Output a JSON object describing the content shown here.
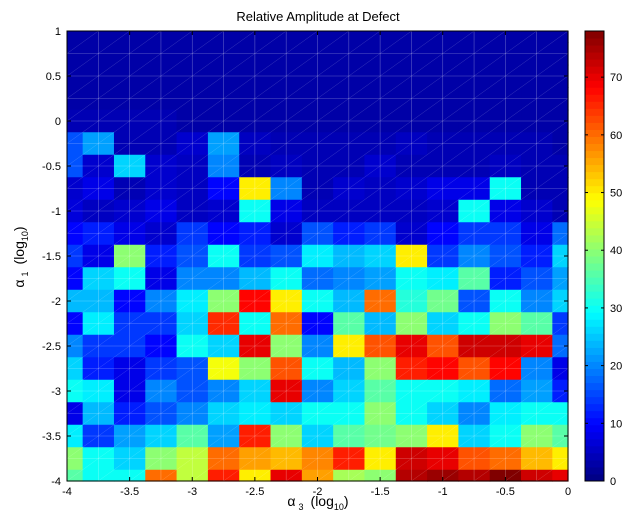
{
  "chart_data": {
    "type": "heatmap",
    "title": "Relative Amplitude at Defect",
    "xlabel": {
      "sym": "α",
      "sub": "3",
      "unit": "(log",
      "unit_sub": "10",
      "unit_end": ")"
    },
    "ylabel": {
      "sym": "α",
      "sub": "1",
      "unit": "(log",
      "unit_sub": "10",
      "unit_end": ")"
    },
    "xlim": [
      -4,
      0
    ],
    "ylim": [
      -4,
      1
    ],
    "xticks": [
      "-4",
      "-3.5",
      "-3",
      "-2.5",
      "-2",
      "-1.5",
      "-1",
      "-0.5",
      "0"
    ],
    "yticks": [
      "-4",
      "-3.5",
      "-3",
      "-2.5",
      "-2",
      "-1.5",
      "-1",
      "-0.5",
      "0",
      "0.5",
      "1"
    ],
    "colorbar": {
      "range": [
        0,
        78
      ],
      "ticks": [
        "0",
        "10",
        "20",
        "30",
        "40",
        "50",
        "60",
        "70"
      ],
      "colormap": "jet"
    },
    "grid": {
      "x": [
        -4,
        -3.75,
        -3.5,
        -3.25,
        -3,
        -2.75,
        -2.5,
        -2.25,
        -2,
        -1.75,
        -1.5,
        -1.25,
        -1,
        -0.75,
        -0.5,
        -0.25,
        0
      ],
      "y": [
        -4,
        -3.75,
        -3.5,
        -3.25,
        -3,
        -2.75,
        -2.5,
        -2.25,
        -2,
        -1.75,
        -1.5,
        -1.25,
        -1,
        -0.75,
        -0.5,
        -0.25,
        0,
        0.25,
        0.5,
        0.75,
        1
      ]
    },
    "z_rows_top_to_bottom": [
      [
        3,
        3,
        3,
        3,
        3,
        3,
        3,
        3,
        3,
        3,
        3,
        3,
        3,
        3,
        3,
        3,
        3
      ],
      [
        3,
        3,
        3,
        3,
        3,
        3,
        3,
        3,
        3,
        3,
        3,
        3,
        3,
        3,
        3,
        3,
        3
      ],
      [
        3,
        3,
        3,
        3,
        3,
        3,
        3,
        3,
        3,
        3,
        3,
        3,
        3,
        3,
        3,
        3,
        3
      ],
      [
        3,
        3,
        3,
        3,
        3,
        3,
        3,
        3,
        3,
        3,
        3,
        3,
        3,
        3,
        3,
        3,
        3
      ],
      [
        4,
        4,
        4,
        4,
        3,
        3,
        3,
        3,
        3,
        3,
        3,
        3,
        3,
        3,
        3,
        3,
        3
      ],
      [
        16,
        22,
        4,
        4,
        6,
        22,
        5,
        4,
        4,
        4,
        4,
        5,
        4,
        4,
        4,
        4,
        3
      ],
      [
        16,
        6,
        26,
        6,
        5,
        20,
        4,
        5,
        4,
        4,
        6,
        4,
        4,
        4,
        5,
        4,
        4
      ],
      [
        6,
        8,
        4,
        6,
        5,
        10,
        50,
        20,
        4,
        6,
        5,
        6,
        8,
        8,
        30,
        4,
        4
      ],
      [
        7,
        5,
        6,
        8,
        5,
        6,
        30,
        8,
        5,
        5,
        5,
        5,
        6,
        30,
        8,
        6,
        4
      ],
      [
        10,
        12,
        8,
        6,
        14,
        10,
        12,
        6,
        16,
        12,
        14,
        6,
        10,
        14,
        14,
        8,
        18
      ],
      [
        14,
        8,
        40,
        12,
        16,
        30,
        14,
        16,
        28,
        24,
        26,
        50,
        14,
        20,
        16,
        12,
        26
      ],
      [
        10,
        26,
        30,
        8,
        20,
        20,
        24,
        30,
        18,
        20,
        22,
        30,
        28,
        36,
        12,
        16,
        22
      ],
      [
        24,
        24,
        10,
        20,
        28,
        40,
        68,
        50,
        30,
        24,
        60,
        32,
        38,
        16,
        30,
        20,
        26
      ],
      [
        10,
        28,
        14,
        14,
        26,
        65,
        30,
        60,
        10,
        36,
        24,
        40,
        26,
        30,
        40,
        36,
        14
      ],
      [
        20,
        14,
        14,
        10,
        30,
        26,
        70,
        40,
        20,
        50,
        62,
        70,
        62,
        72,
        72,
        70,
        18
      ],
      [
        26,
        12,
        8,
        14,
        16,
        48,
        40,
        62,
        30,
        24,
        40,
        66,
        68,
        62,
        68,
        20,
        8
      ],
      [
        30,
        28,
        8,
        20,
        16,
        20,
        26,
        70,
        20,
        26,
        36,
        30,
        30,
        28,
        18,
        22,
        12
      ],
      [
        8,
        24,
        12,
        16,
        20,
        26,
        28,
        26,
        30,
        30,
        40,
        30,
        26,
        20,
        28,
        30,
        30
      ],
      [
        28,
        14,
        22,
        26,
        36,
        22,
        66,
        40,
        26,
        36,
        38,
        40,
        50,
        26,
        30,
        40,
        36
      ],
      [
        40,
        30,
        26,
        40,
        44,
        60,
        56,
        54,
        58,
        66,
        50,
        72,
        70,
        62,
        60,
        54,
        50
      ],
      [
        36,
        30,
        30,
        60,
        44,
        66,
        50,
        70,
        56,
        42,
        40,
        74,
        76,
        74,
        78,
        72,
        70
      ]
    ]
  }
}
